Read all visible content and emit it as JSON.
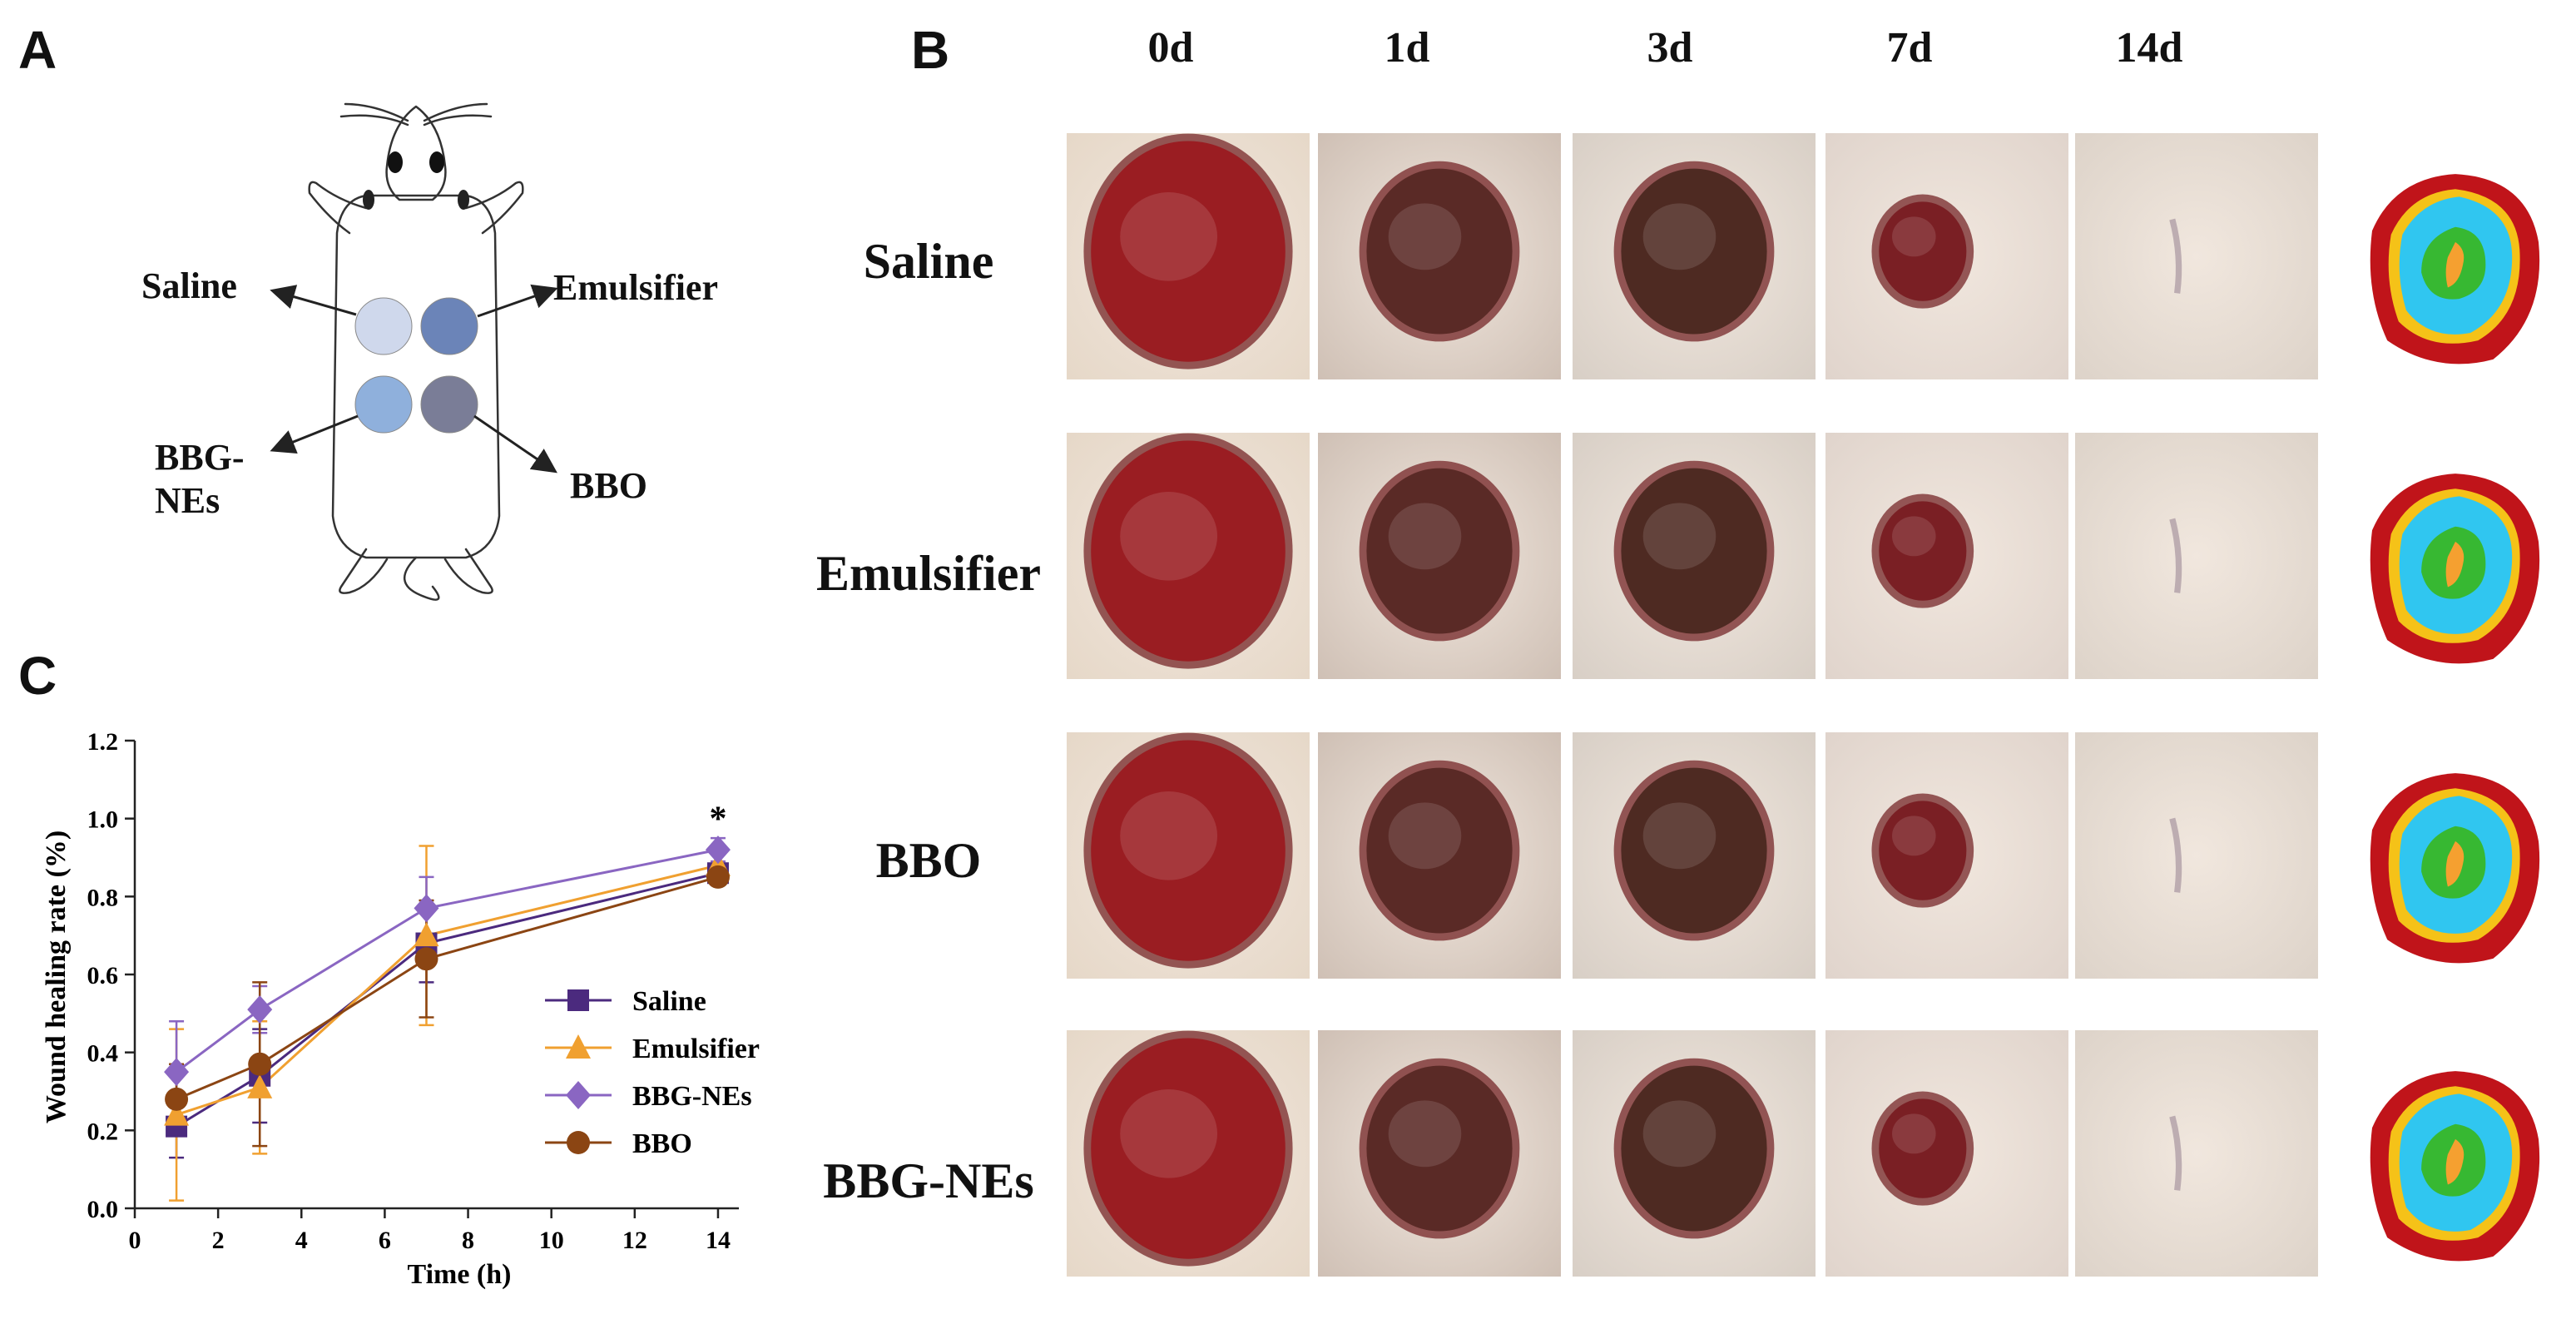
{
  "panels": {
    "a": "A",
    "b": "B",
    "c": "C"
  },
  "diagram": {
    "groups": [
      {
        "label": "Saline",
        "color": "#cfd8ec"
      },
      {
        "label": "Emulsifier",
        "color": "#6b84b8"
      },
      {
        "label": "BBG-\nNEs",
        "color": "#8fb0dc"
      },
      {
        "label": "BBO",
        "color": "#7a7d97"
      }
    ]
  },
  "photo_grid": {
    "days": [
      "0d",
      "1d",
      "3d",
      "7d",
      "14d"
    ],
    "groups": [
      "Saline",
      "Emulsifier",
      "BBO",
      "BBG-NEs"
    ],
    "wound_map_colors": {
      "day0": "#c0141a",
      "day1": "#f5c218",
      "day3": "#30c6f0",
      "day7": "#37b832",
      "day14": "#f5a030"
    }
  },
  "chart_data": {
    "type": "line",
    "x": [
      1,
      3,
      7,
      14
    ],
    "xlabel": "Time (h)",
    "ylabel": "Wound healing rate (%)",
    "xlim": [
      0,
      14.5
    ],
    "ylim": [
      0.0,
      1.2
    ],
    "xticks": [
      "0",
      "2",
      "4",
      "6",
      "8",
      "10",
      "12",
      "14"
    ],
    "yticks": [
      "0.0",
      "0.2",
      "0.4",
      "0.6",
      "0.8",
      "1.0",
      "1.2"
    ],
    "annotation": "*",
    "legend_position": "center-right",
    "grid": false,
    "series": [
      {
        "name": "Saline",
        "color": "#4b2a7e",
        "marker": "square",
        "values": [
          0.21,
          0.34,
          0.68,
          0.86
        ],
        "error": [
          0.08,
          0.12,
          0.1,
          0.02
        ]
      },
      {
        "name": "Emulsifier",
        "color": "#f0a030",
        "marker": "triangle",
        "values": [
          0.24,
          0.31,
          0.7,
          0.88
        ],
        "error": [
          0.22,
          0.17,
          0.23,
          0.04
        ]
      },
      {
        "name": "BBG-NEs",
        "color": "#8a66c2",
        "marker": "diamond",
        "values": [
          0.35,
          0.51,
          0.77,
          0.92
        ],
        "error": [
          0.13,
          0.06,
          0.08,
          0.03
        ]
      },
      {
        "name": "BBO",
        "color": "#8b4513",
        "marker": "circle",
        "values": [
          0.28,
          0.37,
          0.64,
          0.85
        ],
        "error": [
          0.09,
          0.21,
          0.15,
          0.02
        ]
      }
    ]
  }
}
